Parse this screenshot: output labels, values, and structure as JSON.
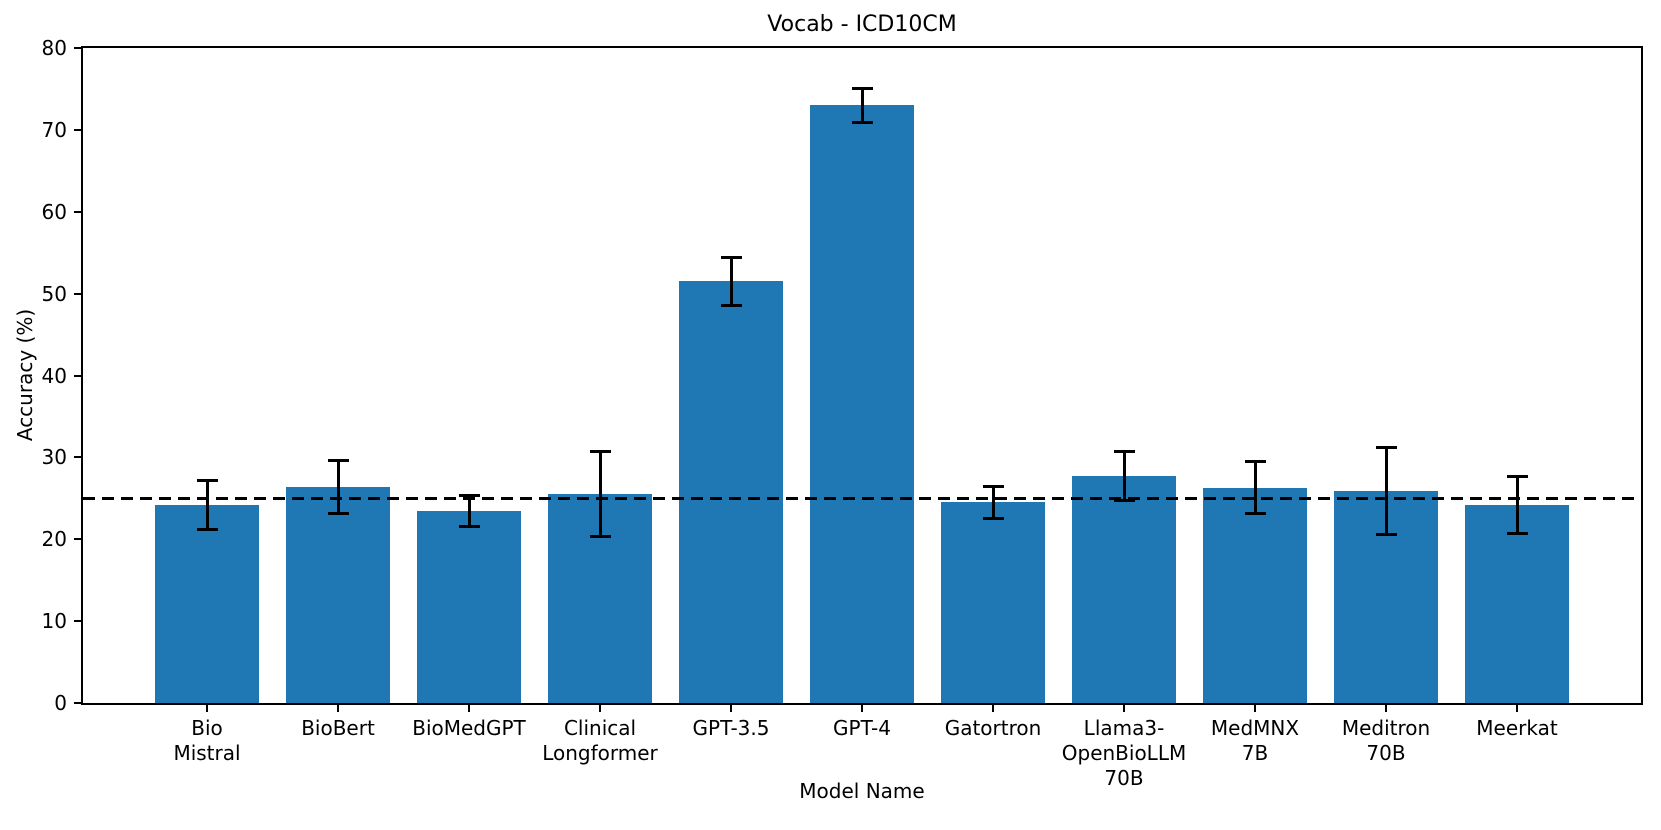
{
  "chart_data": {
    "type": "bar",
    "title": "Vocab - ICD10CM",
    "xlabel": "Model Name",
    "ylabel": "Accuracy (%)",
    "categories": [
      "Bio\nMistral",
      "BioBert",
      "BioMedGPT",
      "Clinical\nLongformer",
      "GPT-3.5",
      "GPT-4",
      "Gatortron",
      "Llama3-\nOpenBioLLM\n70B",
      "MedMNX\n7B",
      "Meditron\n70B",
      "Meerkat"
    ],
    "values": [
      24.2,
      26.4,
      23.4,
      25.5,
      51.5,
      73.0,
      24.5,
      27.7,
      26.3,
      25.9,
      24.2
    ],
    "errors": [
      3.0,
      3.2,
      1.9,
      5.2,
      2.9,
      2.1,
      2.0,
      3.0,
      3.2,
      5.3,
      3.5
    ],
    "ylim": [
      0,
      80
    ],
    "yticks": [
      0,
      10,
      20,
      30,
      40,
      50,
      60,
      70,
      80
    ],
    "reference_line": {
      "value": 25,
      "style": "dashed",
      "color": "#000000"
    },
    "bar_color": "#1f77b4",
    "error_color": "#000000",
    "grid": false,
    "legend_position": "none"
  }
}
